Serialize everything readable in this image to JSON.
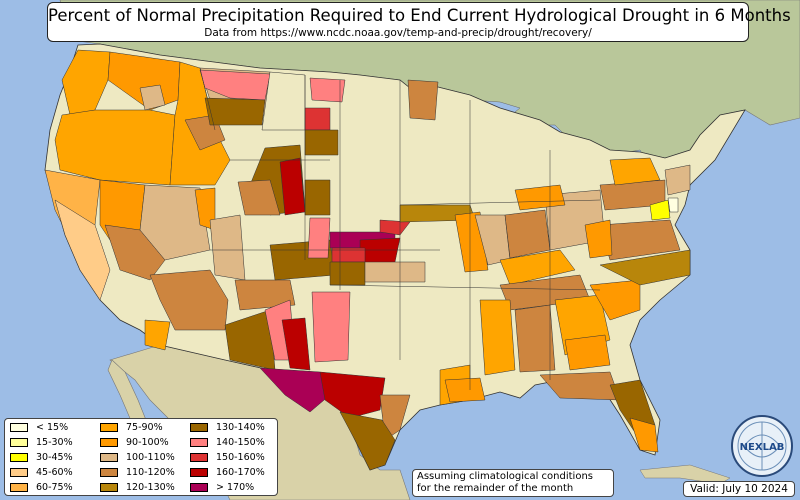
{
  "title": "Percent of Normal Precipitation Required to End Current Hydrological Drought in 6 Months",
  "subtitle": "Data from https://www.ncdc.noaa.gov/temp-and-precip/drought/recovery/",
  "note_line1": "Assuming climatological conditions",
  "note_line2": "for the remainder of the month",
  "valid": "Valid: July 10 2024",
  "logo_text": "NEXLAB",
  "colors": {
    "ocean": "#9dbde6",
    "land": "#eee9c2",
    "canada": "#b9c79a",
    "mexico": "#d9d2a8"
  },
  "legend": [
    {
      "label": "< 15%",
      "color": "#ffffe0"
    },
    {
      "label": "15-30%",
      "color": "#ffff99"
    },
    {
      "label": "30-45%",
      "color": "#ffff00"
    },
    {
      "label": "45-60%",
      "color": "#ffcc88"
    },
    {
      "label": "60-75%",
      "color": "#ffb347"
    },
    {
      "label": "75-90%",
      "color": "#ffa500"
    },
    {
      "label": "90-100%",
      "color": "#ff9900"
    },
    {
      "label": "100-110%",
      "color": "#deb887"
    },
    {
      "label": "110-120%",
      "color": "#cd853f"
    },
    {
      "label": "120-130%",
      "color": "#b8860b"
    },
    {
      "label": "130-140%",
      "color": "#996600"
    },
    {
      "label": "140-150%",
      "color": "#ff8080"
    },
    {
      "label": "150-160%",
      "color": "#dd3333"
    },
    {
      "label": "160-170%",
      "color": "#bb0000"
    },
    {
      "label": "> 170%",
      "color": "#aa0055"
    }
  ]
}
